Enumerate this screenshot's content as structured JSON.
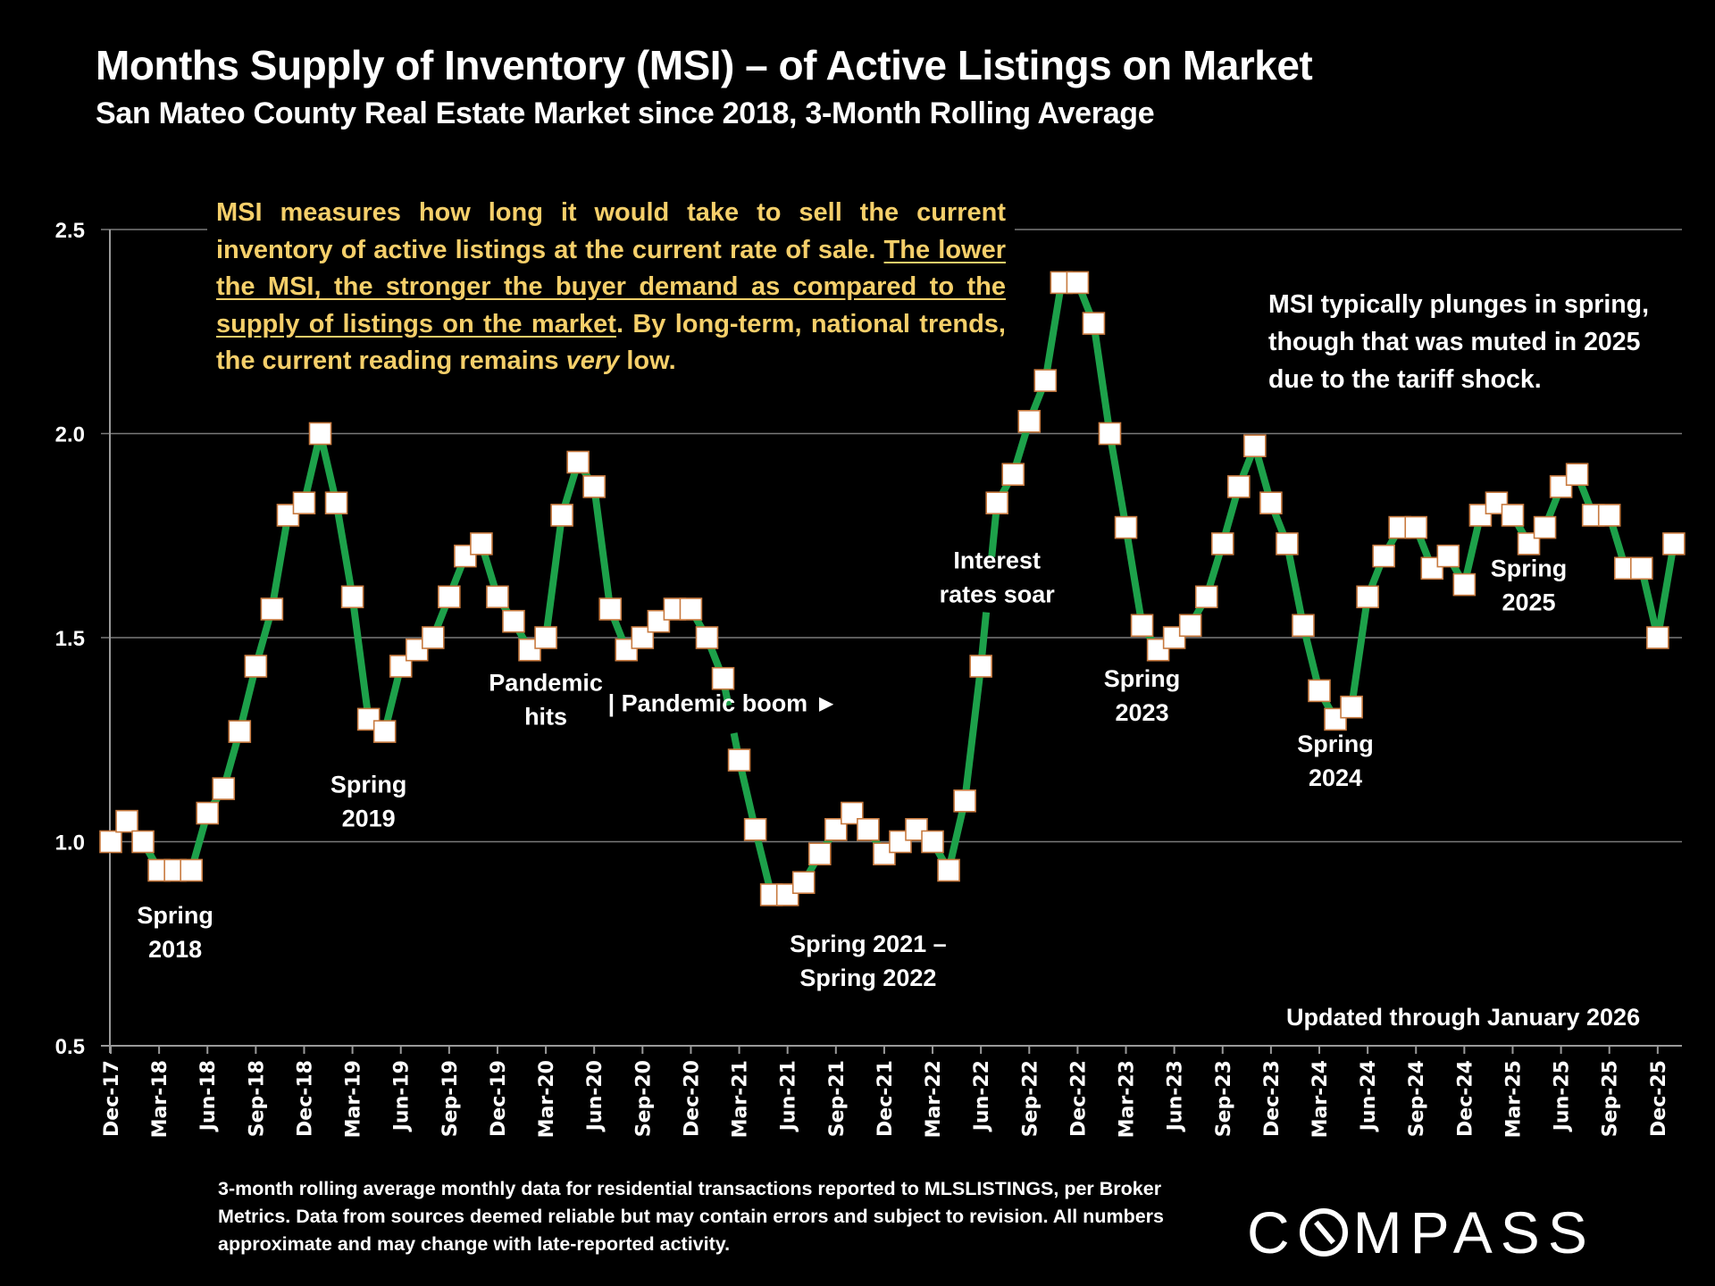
{
  "header": {
    "title": "Months Supply of Inventory (MSI) – of Active Listings on Market",
    "subtitle": "San Mateo County Real Estate Market since 2018, 3-Month Rolling Average"
  },
  "explainer": {
    "part1": "MSI measures how long it would take to sell the current inventory of active listings at the current rate of sale. ",
    "underlined": "The lower the MSI, the stronger the buyer demand as compared to the supply of listings on the market",
    "part2": ". By long-term, national trends, the current reading remains ",
    "italic": "very",
    "part3": " low.",
    "color": "#F5CF6A"
  },
  "side_note": "MSI typically plunges in spring, though that was muted in 2025 due to the tariff shock.",
  "updated": "Updated through January 2026",
  "footer": "3-month rolling average monthly data for residential transactions reported to MLSLISTINGS, per Broker Metrics. Data from sources deemed reliable but may contain errors and subject to revision. All numbers approximate and may change with late-reported activity.",
  "logo": {
    "before": "C",
    "after": "MPASS",
    "icon": "compass-o-slash-icon"
  },
  "chart_data": {
    "type": "line",
    "title": "Months Supply of Inventory (MSI) – of Active Listings on Market",
    "xlabel": "",
    "ylabel": "",
    "ylim": [
      0.5,
      2.5
    ],
    "yticks": [
      "0.5",
      "1.0",
      "1.5",
      "2.0",
      "2.5"
    ],
    "grid": true,
    "legend": "none",
    "line_color": "#1DA14A",
    "marker_fill": "#FFFFFF",
    "marker_edge": "#C87A3F",
    "x_tick_labels": [
      "Dec-17",
      "Mar-18",
      "Jun-18",
      "Sep-18",
      "Dec-18",
      "Mar-19",
      "Jun-19",
      "Sep-19",
      "Dec-19",
      "Mar-20",
      "Jun-20",
      "Sep-20",
      "Dec-20",
      "Mar-21",
      "Jun-21",
      "Sep-21",
      "Dec-21",
      "Mar-22",
      "Jun-22",
      "Sep-22",
      "Dec-22",
      "Mar-23",
      "Jun-23",
      "Sep-23",
      "Dec-23",
      "Mar-24",
      "Jun-24",
      "Sep-24",
      "Dec-24",
      "Mar-25",
      "Jun-25",
      "Sep-25",
      "Dec-25"
    ],
    "series": [
      {
        "name": "MSI (3-month rolling average)",
        "x": [
          "Dec-17",
          "Jan-18",
          "Feb-18",
          "Mar-18",
          "Apr-18",
          "May-18",
          "Jun-18",
          "Jul-18",
          "Aug-18",
          "Sep-18",
          "Oct-18",
          "Nov-18",
          "Dec-18",
          "Jan-19",
          "Feb-19",
          "Mar-19",
          "Apr-19",
          "May-19",
          "Jun-19",
          "Jul-19",
          "Aug-19",
          "Sep-19",
          "Oct-19",
          "Nov-19",
          "Dec-19",
          "Jan-20",
          "Feb-20",
          "Mar-20",
          "Apr-20",
          "May-20",
          "Jun-20",
          "Jul-20",
          "Aug-20",
          "Sep-20",
          "Oct-20",
          "Nov-20",
          "Dec-20",
          "Jan-21",
          "Feb-21",
          "Mar-21",
          "Apr-21",
          "May-21",
          "Jun-21",
          "Jul-21",
          "Aug-21",
          "Sep-21",
          "Oct-21",
          "Nov-21",
          "Dec-21",
          "Jan-22",
          "Feb-22",
          "Mar-22",
          "Apr-22",
          "May-22",
          "Jun-22",
          "Jul-22",
          "Aug-22",
          "Sep-22",
          "Oct-22",
          "Nov-22",
          "Dec-22",
          "Jan-23",
          "Feb-23",
          "Mar-23",
          "Apr-23",
          "May-23",
          "Jun-23",
          "Jul-23",
          "Aug-23",
          "Sep-23",
          "Oct-23",
          "Nov-23",
          "Dec-23",
          "Jan-24",
          "Feb-24",
          "Mar-24",
          "Apr-24",
          "May-24",
          "Jun-24",
          "Jul-24",
          "Aug-24",
          "Sep-24",
          "Oct-24",
          "Nov-24",
          "Dec-24",
          "Jan-25",
          "Feb-25",
          "Mar-25",
          "Apr-25",
          "May-25",
          "Jun-25",
          "Jul-25",
          "Aug-25",
          "Sep-25",
          "Oct-25",
          "Nov-25",
          "Dec-25",
          "Jan-26"
        ],
        "values": [
          1.0,
          1.05,
          1.0,
          0.93,
          0.93,
          0.93,
          1.07,
          1.13,
          1.27,
          1.43,
          1.57,
          1.8,
          1.83,
          2.0,
          1.83,
          1.6,
          1.3,
          1.27,
          1.43,
          1.47,
          1.5,
          1.6,
          1.7,
          1.73,
          1.6,
          1.54,
          1.47,
          1.5,
          1.8,
          1.93,
          1.87,
          1.57,
          1.47,
          1.5,
          1.54,
          1.57,
          1.57,
          1.5,
          1.4,
          1.2,
          1.03,
          0.87,
          0.87,
          0.9,
          0.97,
          1.03,
          1.07,
          1.03,
          0.97,
          1.0,
          1.03,
          1.0,
          0.93,
          1.1,
          1.43,
          1.83,
          1.9,
          2.03,
          2.13,
          2.37,
          2.37,
          2.27,
          2.0,
          1.77,
          1.53,
          1.47,
          1.5,
          1.53,
          1.6,
          1.73,
          1.87,
          1.97,
          1.83,
          1.73,
          1.53,
          1.37,
          1.3,
          1.33,
          1.6,
          1.7,
          1.77,
          1.77,
          1.67,
          1.7,
          1.63,
          1.8,
          1.83,
          1.8,
          1.73,
          1.77,
          1.87,
          1.9,
          1.8,
          1.8,
          1.67,
          1.67,
          1.5,
          1.73
        ]
      }
    ],
    "annotations": [
      {
        "lines": [
          "Spring",
          "2018"
        ],
        "at": "Apr-18",
        "value": 0.8
      },
      {
        "lines": [
          "Spring",
          "2019"
        ],
        "at": "Apr-19",
        "value": 1.12
      },
      {
        "lines": [
          "Pandemic",
          "hits"
        ],
        "at": "Mar-20",
        "value": 1.37
      },
      {
        "lines": [
          "| Pandemic boom ►"
        ],
        "at": "Feb-21",
        "value": 1.32
      },
      {
        "lines": [
          "Spring 2021 –",
          "Spring 2022"
        ],
        "at": "Nov-21",
        "value": 0.73
      },
      {
        "lines": [
          "Interest",
          "rates soar"
        ],
        "at": "Jul-22",
        "value": 1.67
      },
      {
        "lines": [
          "Spring",
          "2023"
        ],
        "at": "Apr-23",
        "value": 1.38
      },
      {
        "lines": [
          "Spring",
          "2024"
        ],
        "at": "Apr-24",
        "value": 1.22
      },
      {
        "lines": [
          "Spring",
          "2025"
        ],
        "at": "Apr-25",
        "value": 1.65
      }
    ],
    "line_gaps": [
      {
        "from": "Feb-21",
        "to": "Mar-21"
      },
      {
        "from": "Jun-22",
        "to": "Jul-22"
      }
    ]
  }
}
